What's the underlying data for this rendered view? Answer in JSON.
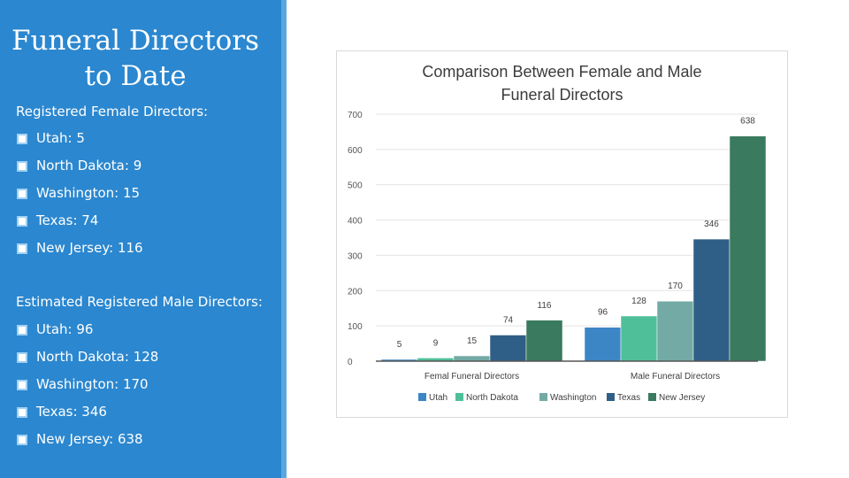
{
  "sidebar": {
    "title_line1": "Funeral Directors",
    "title_line2": "to Date",
    "female_heading": "Registered Female Directors:",
    "female_items": [
      "Utah: 5",
      "North Dakota: 9",
      "Washington: 15",
      "Texas: 74",
      "New Jersey: 116"
    ],
    "male_heading": "Estimated Registered Male Directors:",
    "male_items": [
      "Utah: 96",
      "North Dakota: 128",
      "Washington: 170",
      "Texas: 346",
      "New Jersey: 638"
    ]
  },
  "chart_data": {
    "type": "bar",
    "title_line1": "Comparison Between Female and Male",
    "title_line2": "Funeral Directors",
    "categories": [
      "Femal Funeral Directors",
      "Male Funeral Directors"
    ],
    "series": [
      {
        "name": "Utah",
        "values": [
          5,
          96
        ],
        "color": "#3d86c6"
      },
      {
        "name": "North Dakota",
        "values": [
          9,
          128
        ],
        "color": "#4fbf9a"
      },
      {
        "name": "Washington",
        "values": [
          15,
          170
        ],
        "color": "#73aaa5"
      },
      {
        "name": "Texas",
        "values": [
          74,
          346
        ],
        "color": "#2f5f86"
      },
      {
        "name": "New Jersey",
        "values": [
          116,
          638
        ],
        "color": "#3a7a5e"
      }
    ],
    "ylim": [
      0,
      700
    ],
    "yticks": [
      0,
      100,
      200,
      300,
      400,
      500,
      600,
      700
    ],
    "grid": true,
    "legend": "bottom"
  }
}
